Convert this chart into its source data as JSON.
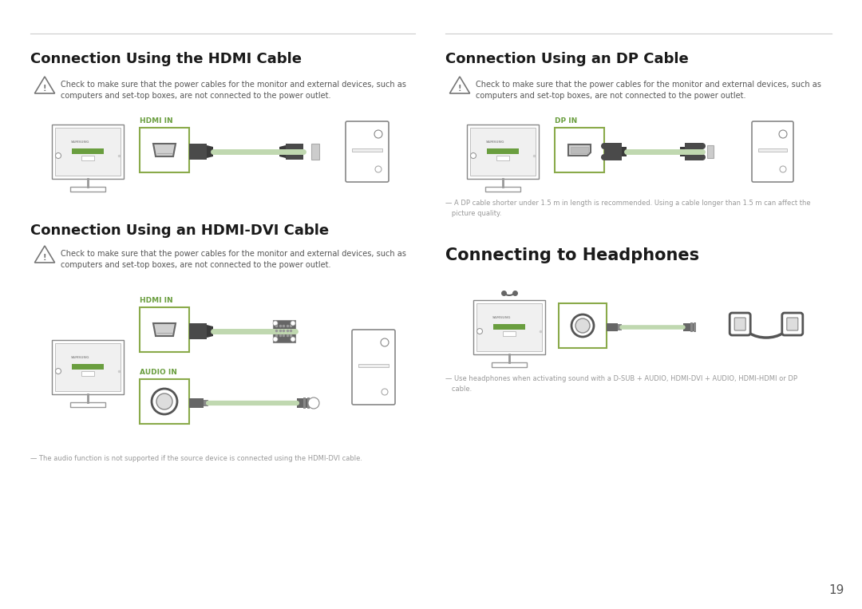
{
  "bg_color": "#ffffff",
  "line_color": "#bbbbbb",
  "title_color": "#1a1a1a",
  "sec_title_fs": 13,
  "body_fs": 7,
  "small_fs": 6,
  "port_label_color": "#6a9e3f",
  "warn_text_color": "#555555",
  "connector_dark": "#4a4a4a",
  "connector_mid": "#666666",
  "cable_color": "#c0d8b0",
  "green_bar": "#6a9e3f",
  "page_num": "19",
  "sections": [
    {
      "id": "hdmi",
      "title": "Connection Using the HDMI Cable",
      "warning": "Check to make sure that the power cables for the monitor and external devices, such as\ncomputers and set-top boxes, are not connected to the power outlet.",
      "port_label": "HDMI IN",
      "note": ""
    },
    {
      "id": "dp",
      "title": "Connection Using an DP Cable",
      "warning": "Check to make sure that the power cables for the monitor and external devices, such as\ncomputers and set-top boxes, are not connected to the power outlet.",
      "port_label": "DP IN",
      "note": "— A DP cable shorter under 1.5 m in length is recommended. Using a cable longer than 1.5 m can affect the\n   picture quality."
    },
    {
      "id": "hdmi_dvi",
      "title": "Connection Using an HDMI-DVI Cable",
      "warning": "Check to make sure that the power cables for the monitor and external devices, such as\ncomputers and set-top boxes, are not connected to the power outlet.",
      "port_label": "HDMI IN",
      "port2_label": "AUDIO IN",
      "note": "— The audio function is not supported if the source device is connected using the HDMI-DVI cable."
    },
    {
      "id": "headphones",
      "title": "Connecting to Headphones",
      "warning": "",
      "port_label": "",
      "note": "— Use headphones when activating sound with a D-SUB + AUDIO, HDMI-DVI + AUDIO, HDMI-HDMI or DP\n   cable."
    }
  ]
}
